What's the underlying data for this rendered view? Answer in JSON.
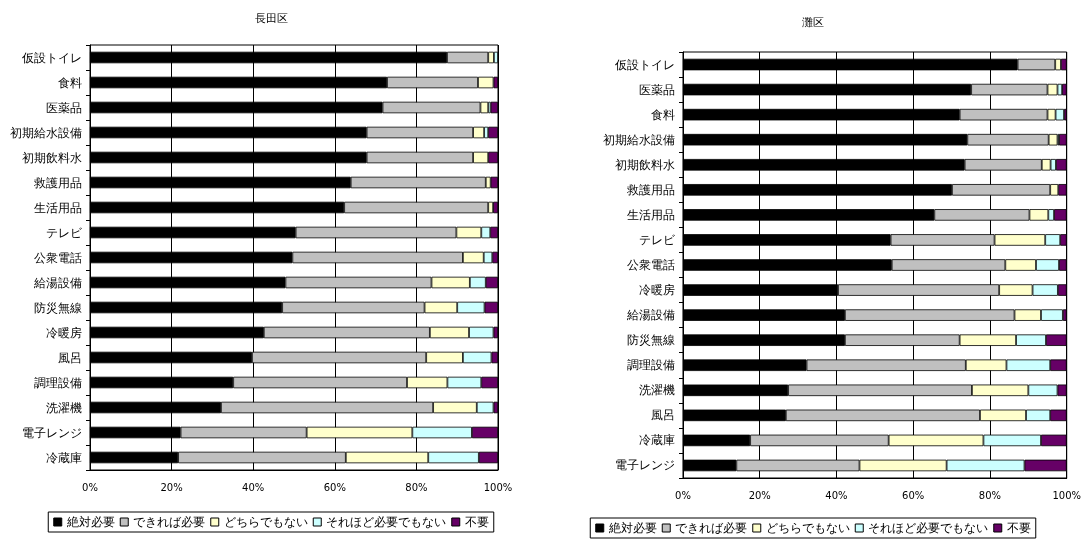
{
  "chart_data": [
    {
      "type": "bar",
      "title": "長田区",
      "orientation": "horizontal",
      "stacked": true,
      "grid": "x",
      "legend": "bottom",
      "categories": [
        "仮設トイレ",
        "食料",
        "医薬品",
        "初期給水設備",
        "初期飲料水",
        "救護用品",
        "生活用品",
        "テレビ",
        "公衆電話",
        "給湯設備",
        "防災無線",
        "冷暖房",
        "風呂",
        "調理設備",
        "洗濯機",
        "電子レンジ",
        "冷蔵庫"
      ],
      "xlim": [
        0,
        100
      ],
      "xticks": [
        {
          "value": 0,
          "label": "0%"
        },
        {
          "value": 20,
          "label": "20%"
        },
        {
          "value": 40,
          "label": "40%"
        },
        {
          "value": 60,
          "label": "60%"
        },
        {
          "value": 80,
          "label": "80%"
        },
        {
          "value": 100,
          "label": "100%"
        }
      ],
      "series": [
        {
          "name": "絶対必要",
          "color": "#000000",
          "values": [
            87.5,
            72.8,
            71.7,
            67.8,
            67.8,
            63.9,
            62.3,
            50.4,
            49.6,
            47.9,
            47.1,
            42.6,
            39.7,
            35.1,
            32.1,
            22.2,
            21.6
          ]
        },
        {
          "name": "できれば必要",
          "color": "#c0c0c0",
          "values": [
            10.1,
            22.3,
            24,
            26.1,
            26.1,
            33.1,
            35.3,
            39.4,
            41.8,
            35.8,
            34.9,
            40.7,
            42.7,
            42.6,
            52,
            30.9,
            41.1
          ]
        },
        {
          "name": "どちらでもない",
          "color": "#ffffcc",
          "values": [
            1.4,
            3.8,
            1.9,
            2.7,
            3.7,
            1.2,
            1.2,
            6.1,
            5.1,
            9.4,
            8,
            9.6,
            9,
            9.9,
            10.7,
            25.9,
            20.2
          ]
        },
        {
          "name": "それほど必要でもない",
          "color": "#ccffff",
          "values": [
            1,
            0,
            0.6,
            1,
            0,
            0,
            0,
            2.2,
            2.1,
            3.9,
            6.7,
            6,
            7,
            8.3,
            4.1,
            14.6,
            12.4
          ]
        },
        {
          "name": "不要",
          "color": "#660066",
          "values": [
            0,
            1.1,
            1.8,
            2.4,
            2.4,
            1.8,
            1.2,
            1.9,
            1.4,
            3,
            3.3,
            1.1,
            1.6,
            4.1,
            1.1,
            6.4,
            4.7
          ]
        }
      ]
    },
    {
      "type": "bar",
      "title": "灘区",
      "orientation": "horizontal",
      "stacked": true,
      "grid": "x",
      "legend": "bottom",
      "categories": [
        "仮設トイレ",
        "医薬品",
        "食料",
        "初期給水設備",
        "初期飲料水",
        "救護用品",
        "生活用品",
        "テレビ",
        "公衆電話",
        "冷暖房",
        "給湯設備",
        "防災無線",
        "調理設備",
        "洗濯機",
        "風呂",
        "冷蔵庫",
        "電子レンジ"
      ],
      "xlim": [
        0,
        100
      ],
      "xticks": [
        {
          "value": 0,
          "label": "0%"
        },
        {
          "value": 20,
          "label": "20%"
        },
        {
          "value": 40,
          "label": "40%"
        },
        {
          "value": 60,
          "label": "60%"
        },
        {
          "value": 80,
          "label": "80%"
        },
        {
          "value": 100,
          "label": "100%"
        }
      ],
      "series": [
        {
          "name": "絶対必要",
          "color": "#000000",
          "values": [
            87.2,
            75.1,
            72.1,
            74.1,
            73.4,
            70.1,
            65.5,
            54.1,
            54.4,
            40.4,
            42.2,
            42.2,
            32.2,
            27.4,
            26.8,
            17.5,
            13.9
          ]
        },
        {
          "name": "できれば必要",
          "color": "#c0c0c0",
          "values": [
            9.8,
            19.9,
            22.9,
            21.2,
            20.1,
            25.6,
            24.8,
            27.1,
            29.6,
            42,
            44.2,
            29.9,
            41.5,
            47.9,
            50.6,
            36.1,
            32.1
          ]
        },
        {
          "name": "どちらでもない",
          "color": "#ffffcc",
          "values": [
            1.5,
            2.6,
            2.1,
            2.3,
            2.3,
            2.1,
            4.9,
            13.2,
            8,
            8.7,
            6.9,
            14.7,
            10.6,
            14.7,
            12,
            24.7,
            22.7
          ]
        },
        {
          "name": "それほど必要でもない",
          "color": "#ccffff",
          "values": [
            0,
            1.2,
            2.2,
            0.4,
            1.4,
            0,
            1.5,
            3.9,
            6,
            6.6,
            5.7,
            7.8,
            11.4,
            7.6,
            6.3,
            15,
            20.3
          ]
        },
        {
          "name": "不要",
          "color": "#660066",
          "values": [
            1.5,
            1.2,
            0.7,
            2,
            2.8,
            2.2,
            3.3,
            1.7,
            2,
            2.3,
            1,
            5.4,
            4.3,
            2.4,
            4.3,
            6.7,
            11
          ]
        }
      ]
    }
  ]
}
